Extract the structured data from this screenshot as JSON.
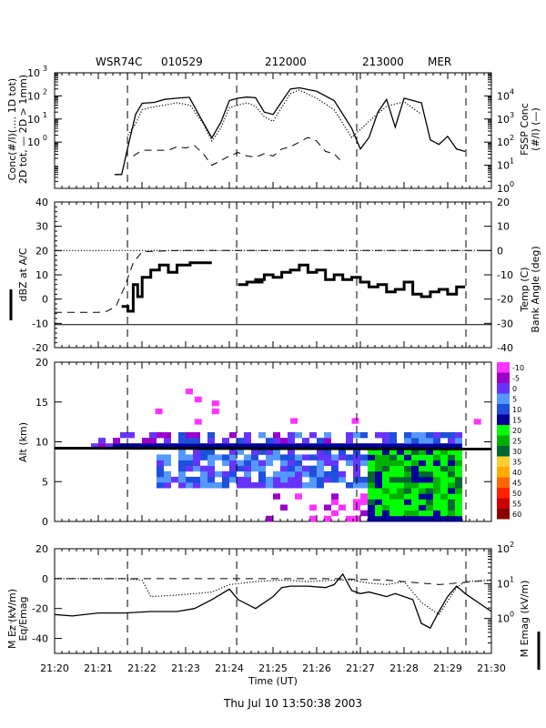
{
  "header": {
    "radar": "WSR74C",
    "date_code": "010529",
    "time_a": "212000",
    "time_b": "213000",
    "site": "MER"
  },
  "footer": {
    "timestamp": "Thu Jul 10 13:50:38 2003"
  },
  "colors": {
    "axis": "#000000",
    "background": "#ffffff"
  },
  "chart_data": [
    {
      "type": "line",
      "panel": "concentration",
      "xlim": [
        21.3333,
        21.5
      ],
      "ylim_left_log10": [
        -2,
        3
      ],
      "ylim_right_log10": [
        0,
        5
      ],
      "ylabel_left_lines": [
        "Conc(#/l)(.... 1D tot)",
        "2D tot, — 2D > 1mm)"
      ],
      "ylabel_right_lines": [
        "FSSP Conc",
        "(#/l) (—)"
      ],
      "left_tick_labels": [
        {
          "base": "10",
          "exp": "3",
          "at": 3
        },
        {
          "base": "10",
          "exp": "2",
          "at": 2
        },
        {
          "base": "10",
          "exp": "1",
          "at": 1
        },
        {
          "base": "10",
          "exp": "0",
          "at": 0
        }
      ],
      "right_tick_labels": [
        {
          "base": "10",
          "exp": "4",
          "at": 4
        },
        {
          "base": "10",
          "exp": "3",
          "at": 3
        },
        {
          "base": "10",
          "exp": "2",
          "at": 2
        },
        {
          "base": "10",
          "exp": "1",
          "at": 1
        },
        {
          "base": "10",
          "exp": "0",
          "at": 0
        }
      ],
      "series": [
        {
          "style": "solid",
          "x": [
            21.3562,
            21.3589,
            21.3613,
            21.3642,
            21.3667,
            21.369,
            21.3714,
            21.3753,
            21.38,
            21.3847,
            21.3893,
            21.3933,
            21.3967,
            21.4,
            21.4033,
            21.4067,
            21.41,
            21.4133,
            21.4167,
            21.42,
            21.4233,
            21.4267,
            21.4333,
            21.44,
            21.4467,
            21.45,
            21.4533,
            21.4567,
            21.46,
            21.4633,
            21.4667,
            21.4733,
            21.4767,
            21.48,
            21.4833,
            21.4867,
            21.49
          ],
          "y": [
            -1.4,
            -1.4,
            -0.2,
            1.2,
            1.68,
            1.7,
            1.72,
            1.85,
            1.9,
            1.94,
            1.0,
            0.18,
            0.85,
            1.8,
            1.9,
            1.95,
            1.92,
            1.3,
            1.2,
            1.75,
            2.3,
            2.35,
            2.2,
            1.8,
            0.6,
            -0.3,
            0.2,
            1.3,
            1.85,
            0.65,
            1.9,
            1.7,
            0.1,
            -0.1,
            0.25,
            -0.3,
            -0.4
          ]
        },
        {
          "style": "dotted",
          "x": [
            21.3613,
            21.3642,
            21.3667,
            21.37,
            21.375,
            21.38,
            21.385,
            21.39,
            21.3933,
            21.3967,
            21.4,
            21.4067,
            21.41,
            21.4133,
            21.4167,
            21.42,
            21.4233,
            21.4267,
            21.4333,
            21.44,
            21.4467,
            21.4533,
            21.46,
            21.4667,
            21.4733
          ],
          "y": [
            0.3,
            0.8,
            1.4,
            1.5,
            1.6,
            1.7,
            1.6,
            0.8,
            0.05,
            0.6,
            1.5,
            1.7,
            1.55,
            1.1,
            0.9,
            1.5,
            2.1,
            2.25,
            1.9,
            1.4,
            0.2,
            0.9,
            1.55,
            1.75,
            1.2
          ]
        },
        {
          "style": "dashed",
          "x": [
            21.3633,
            21.3667,
            21.3767,
            21.38,
            21.3833,
            21.3867,
            21.39,
            21.3933,
            21.3967,
            21.4,
            21.4033,
            21.4067,
            21.41,
            21.4133,
            21.4167,
            21.42,
            21.4233,
            21.4267,
            21.43,
            21.4333,
            21.4367,
            21.44,
            21.4433
          ],
          "y": [
            -0.6,
            -0.35,
            -0.35,
            -0.2,
            -0.25,
            -0.15,
            -0.5,
            -1.0,
            -0.8,
            -0.6,
            -0.45,
            -0.6,
            -0.65,
            -0.5,
            -0.6,
            -0.3,
            -0.2,
            0.0,
            0.2,
            0.05,
            -0.4,
            -0.5,
            -0.9
          ]
        }
      ]
    },
    {
      "type": "line",
      "panel": "reflectivity_temperature",
      "xlim": [
        21.3333,
        21.5
      ],
      "ylim_left": [
        -20,
        40
      ],
      "ylim_right": [
        -40,
        20
      ],
      "ylabel_left": "dBZ at A/C",
      "ylabel_right_lines": [
        "Temp (C)",
        "Bank Angle (deg)"
      ],
      "left_ticks": [
        -20,
        -10,
        0,
        10,
        20,
        30,
        40
      ],
      "right_ticks": [
        -40,
        -30,
        -20,
        -10,
        0,
        10,
        20
      ],
      "series": [
        {
          "style": "thick-step",
          "x": [
            21.3589,
            21.3613,
            21.3613,
            21.3633,
            21.3633,
            21.365,
            21.365,
            21.3667,
            21.3667,
            21.37,
            21.37,
            21.3733,
            21.3733,
            21.3767,
            21.3767,
            21.38,
            21.38,
            21.385,
            21.385,
            21.39,
            21.39,
            21.3933
          ],
          "y": [
            -3,
            -3,
            -5,
            -5,
            6,
            6,
            1,
            1,
            9,
            9,
            12,
            12,
            14,
            14,
            11,
            11,
            14,
            14,
            15,
            15,
            15,
            15
          ]
        },
        {
          "style": "thick-step",
          "x": [
            21.4033,
            21.4067,
            21.4067,
            21.41,
            21.41,
            21.4133,
            21.4133,
            21.4167,
            21.4167,
            21.42,
            21.42,
            21.4233,
            21.4233,
            21.4267,
            21.4267,
            21.43,
            21.43,
            21.4333,
            21.4333,
            21.4367,
            21.4367,
            21.44,
            21.44,
            21.4433,
            21.4433,
            21.4467,
            21.4467,
            21.45,
            21.45,
            21.4533,
            21.4533,
            21.4567,
            21.4567,
            21.46,
            21.46,
            21.4633,
            21.4633,
            21.4667,
            21.4667,
            21.47,
            21.47,
            21.4733,
            21.4733,
            21.4767,
            21.4767,
            21.48,
            21.48,
            21.4833,
            21.4833,
            21.4867,
            21.4867,
            21.49
          ],
          "y": [
            6,
            6,
            7,
            7,
            8,
            8,
            10,
            10,
            9,
            9,
            11,
            11,
            12,
            12,
            14,
            14,
            11,
            11,
            12,
            12,
            8,
            8,
            10,
            10,
            8,
            8,
            9,
            9,
            7,
            7,
            5,
            5,
            6,
            6,
            3,
            3,
            4,
            4,
            7,
            7,
            2,
            2,
            1,
            1,
            3,
            3,
            4,
            4,
            2,
            2,
            5,
            5
          ]
        },
        {
          "style": "dashed",
          "x": [
            21.3333,
            21.35,
            21.3533,
            21.3567,
            21.36,
            21.3633,
            21.3667,
            21.38,
            21.4,
            21.42,
            21.44,
            21.46,
            21.48,
            21.5
          ],
          "y": [
            -5.5,
            -5.5,
            -5,
            -3,
            5,
            15,
            19.5,
            20,
            20,
            20,
            20,
            20,
            20,
            20
          ]
        },
        {
          "style": "solid-thin",
          "x": [
            21.3333,
            21.5
          ],
          "y": [
            -10.5,
            -10.5
          ]
        },
        {
          "style": "dotted-thin",
          "x": [
            21.3333,
            21.5
          ],
          "y": [
            20,
            20
          ]
        }
      ]
    },
    {
      "type": "heatmap",
      "panel": "reflectivity_altitude",
      "xlim": [
        21.3333,
        21.5
      ],
      "ylim": [
        0,
        20
      ],
      "ylabel": "Alt (km)",
      "y_ticks": [
        0,
        5,
        10,
        15,
        20
      ],
      "colorbar": {
        "labels": [
          "-10",
          "-5",
          "0",
          "5",
          "10",
          "15",
          "20",
          "25",
          "30",
          "35",
          "40",
          "45",
          "50",
          "55",
          "60"
        ],
        "colors": [
          "#ff33ff",
          "#9900cc",
          "#6633ff",
          "#5599ff",
          "#1f4fdd",
          "#000099",
          "#00ff00",
          "#00b000",
          "#006633",
          "#ffcc33",
          "#ffaa00",
          "#ff6600",
          "#ff2200",
          "#cc0000",
          "#880000"
        ]
      },
      "aircraft_track": {
        "x": [
          21.3333,
          21.5
        ],
        "y": [
          9.2,
          9.1
        ]
      },
      "summary": "Reflectivity mostly 0-20 dBZ between 0 and 11 km altitude from 21:21:50 to 21:30; core of 20-30 dBZ below 8 km after 21:27."
    },
    {
      "type": "line",
      "panel": "electric_field",
      "xlim": [
        21.3333,
        21.5
      ],
      "ylim_left": [
        -50,
        20
      ],
      "ylim_right_log10": [
        -1,
        2
      ],
      "ylabel_left_lines": [
        "M Ez (kV/m)",
        "Eq/Emag"
      ],
      "ylabel_right": "M Emag (kV/m)",
      "left_ticks": [
        -40,
        -20,
        0,
        20
      ],
      "right_tick_labels": [
        {
          "base": "10",
          "exp": "2",
          "at": 2
        },
        {
          "base": "10",
          "exp": "1",
          "at": 1
        },
        {
          "base": "10",
          "exp": "0",
          "at": 0
        }
      ],
      "series": [
        {
          "style": "solid",
          "x": [
            21.3333,
            21.34,
            21.35,
            21.36,
            21.37,
            21.38,
            21.3867,
            21.3933,
            21.4,
            21.4033,
            21.41,
            21.4167,
            21.42,
            21.4233,
            21.43,
            21.4367,
            21.44,
            21.4433,
            21.4467,
            21.45,
            21.4533,
            21.46,
            21.4633,
            21.4667,
            21.47,
            21.4733,
            21.4767,
            21.48,
            21.4833,
            21.4867,
            21.49,
            21.5
          ],
          "y": [
            -24,
            -25,
            -23,
            -23,
            -22,
            -22,
            -20,
            -14,
            -7,
            -14,
            -20,
            -12,
            -6,
            -5,
            -5,
            -6,
            -4,
            3,
            -8,
            -10,
            -9,
            -12,
            -10,
            -12,
            -14,
            -30,
            -33,
            -22,
            -12,
            -5,
            -10,
            -22
          ]
        },
        {
          "style": "dotted",
          "x": [
            21.3333,
            21.36,
            21.3667,
            21.37,
            21.38,
            21.3867,
            21.3933,
            21.4,
            21.41,
            21.42,
            21.43,
            21.44,
            21.4467,
            21.4533,
            21.46,
            21.4667,
            21.4733,
            21.48,
            21.4867,
            21.49,
            21.5
          ],
          "y": [
            0,
            0,
            -1,
            -12,
            -11,
            -10,
            -9,
            -4,
            -2,
            -1,
            -2,
            -1,
            -1,
            -3,
            -4,
            -2,
            -16,
            -24,
            -6,
            -2,
            -1
          ]
        },
        {
          "style": "dashed",
          "x": [
            21.3333,
            21.4,
            21.44,
            21.46,
            21.4733,
            21.48,
            21.5
          ],
          "y": [
            0,
            0,
            0,
            -1,
            -3,
            -4,
            -1
          ]
        }
      ],
      "xlabel": "Time (UT)",
      "x_tick_labels": [
        "21:20",
        "21:21",
        "21:22",
        "21:23",
        "21:24",
        "21:25",
        "21:26",
        "21:27",
        "21:28",
        "21:29",
        "21:30"
      ]
    }
  ],
  "event_markers_hhmm": [
    "21:21:40",
    "21:24:10",
    "21:26:55",
    "21:29:25"
  ]
}
